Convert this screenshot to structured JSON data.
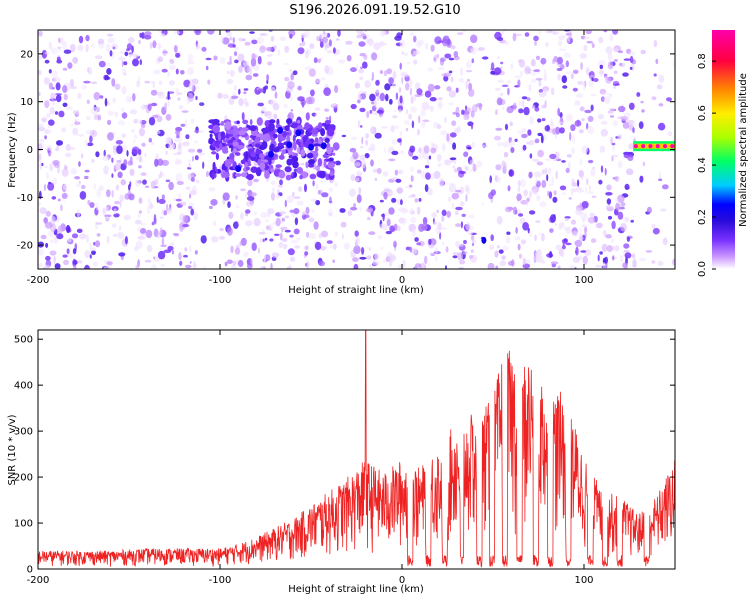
{
  "title": "S196.2026.091.19.52.G10",
  "chart_data": [
    {
      "type": "heatmap",
      "xlabel": "Height of straight line (km)",
      "ylabel": "Frequency (Hz)",
      "xlim": [
        -200,
        150
      ],
      "ylim": [
        -25,
        25
      ],
      "xticks": [
        -200,
        -100,
        0,
        100
      ],
      "yticks": [
        -20,
        -10,
        0,
        10,
        20
      ],
      "colorbar": {
        "label": "Normalized spectral amplitude",
        "range": [
          0,
          0.92
        ],
        "ticks": [
          0.0,
          0.2,
          0.4,
          0.6,
          0.8
        ],
        "colormap": [
          "#ffffff",
          "#cc99ff",
          "#7a33ff",
          "#2a0bd9",
          "#0000ff",
          "#00ccff",
          "#00ff66",
          "#aaff00",
          "#ffee00",
          "#ff8800",
          "#ff0040",
          "#ff00aa"
        ]
      },
      "features": [
        {
          "label": "dense cluster",
          "x_range": [
            -105,
            -38
          ],
          "y_range": [
            -6,
            6
          ],
          "peak": 0.3
        },
        {
          "label": "bright spot",
          "x": 45,
          "y": -19,
          "peak": 0.3
        },
        {
          "label": "strong tone",
          "x_range": [
            127,
            150
          ],
          "y": 0.7,
          "peak": 0.92
        }
      ]
    },
    {
      "type": "line",
      "xlabel": "Height of straight line (km)",
      "ylabel": "SNR (10 * v/v)",
      "xlim": [
        -200,
        150
      ],
      "ylim": [
        0,
        520
      ],
      "xticks": [
        -200,
        -100,
        0,
        100
      ],
      "yticks": [
        0,
        100,
        200,
        300,
        400,
        500
      ],
      "color": "#ee2222",
      "envelope": {
        "x": [
          -200,
          -180,
          -160,
          -140,
          -120,
          -100,
          -90,
          -80,
          -70,
          -60,
          -50,
          -40,
          -30,
          -20,
          -10,
          0,
          10,
          20,
          30,
          40,
          50,
          55,
          60,
          65,
          70,
          80,
          90,
          100,
          110,
          120,
          130,
          140,
          150
        ],
        "y": [
          40,
          40,
          40,
          45,
          45,
          45,
          55,
          70,
          90,
          110,
          140,
          170,
          200,
          240,
          210,
          240,
          220,
          270,
          320,
          340,
          370,
          470,
          480,
          440,
          470,
          400,
          380,
          250,
          170,
          160,
          120,
          160,
          240
        ]
      },
      "spike": {
        "x": -20,
        "y": 520
      }
    }
  ]
}
